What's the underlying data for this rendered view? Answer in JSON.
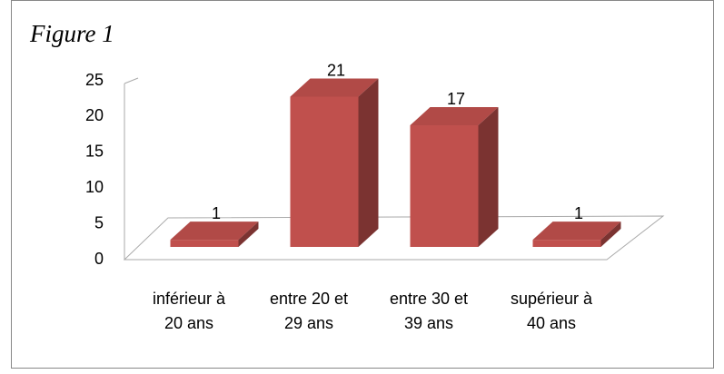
{
  "chart_data": {
    "type": "bar3d",
    "title": "Figure 1",
    "categories": [
      [
        "inférieur à",
        "20 ans"
      ],
      [
        "entre 20 et",
        "29 ans"
      ],
      [
        "entre 30 et",
        "39 ans"
      ],
      [
        "supérieur à",
        "40 ans"
      ]
    ],
    "values": [
      1,
      21,
      17,
      1
    ],
    "color": "#c0504d",
    "ylim": [
      0,
      25
    ],
    "yticks": [
      0,
      5,
      10,
      15,
      20,
      25
    ],
    "grid": false
  }
}
